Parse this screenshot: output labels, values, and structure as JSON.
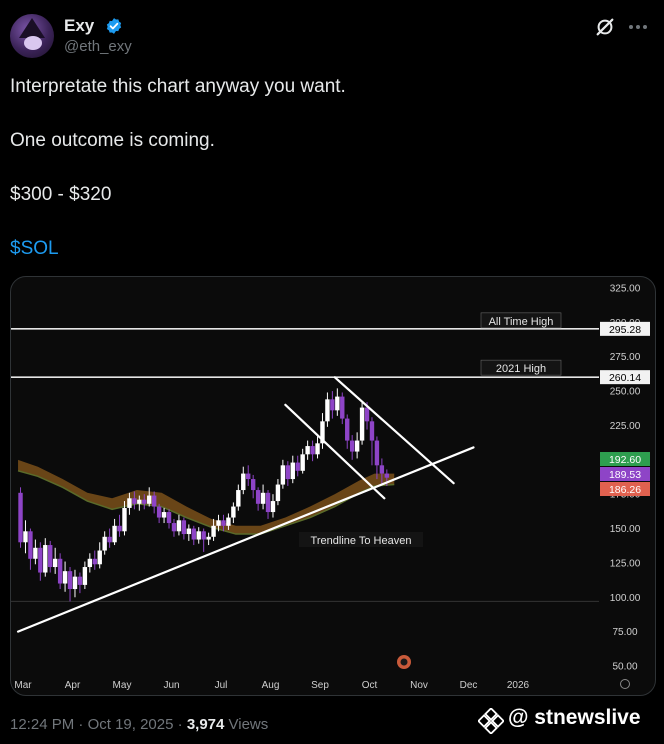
{
  "author": {
    "name": "Exy",
    "handle": "@eth_exy"
  },
  "icons": {
    "verified": "verified-badge-icon",
    "grok": "grok-icon",
    "more": "more-icon",
    "watermark": "binance-square-icon"
  },
  "colors": {
    "background": "#000000",
    "accent": "#1d9bf0",
    "muted": "#71767b",
    "candle_up": "#ffffff",
    "candle_down": "#8e44c7",
    "ema_band": "#8a5a1c"
  },
  "tweet": {
    "line1": "Interpretate this chart anyway you want.",
    "line2": "One outcome is coming.",
    "line3": "$300 - $320",
    "cashtag": "$SOL"
  },
  "meta": {
    "time": "12:24 PM",
    "sep1": " · ",
    "date": "Oct 19, 2025",
    "sep2": " · ",
    "views_count": "3,974",
    "views_label": " Views"
  },
  "watermark": "@ stnewslive",
  "chart_data": {
    "type": "candlestick",
    "symbol": "SOL",
    "y_axis": {
      "min": 50,
      "max": 325,
      "ticks": [
        325.0,
        300.0,
        275.0,
        250.0,
        225.0,
        200.0,
        175.0,
        150.0,
        125.0,
        100.0,
        75.0,
        50.0
      ],
      "tick_labels": [
        "325.00",
        "300.00",
        "275.00",
        "250.00",
        "225.00",
        "200.00",
        "175.00",
        "150.00",
        "125.00",
        "100.00",
        "75.00",
        "50.00"
      ]
    },
    "x_axis": {
      "labels": [
        "Mar",
        "Apr",
        "May",
        "Jun",
        "Jul",
        "Aug",
        "Sep",
        "Oct",
        "Nov",
        "Dec",
        "2026"
      ],
      "positions": [
        0,
        1,
        2,
        3,
        4,
        5,
        6,
        7,
        8,
        9,
        10
      ]
    },
    "horizontal_levels": [
      {
        "label": "All Time High",
        "value": 295.28,
        "value_label": "295.28"
      },
      {
        "label": "2021 High",
        "value": 260.14,
        "value_label": "260.14"
      }
    ],
    "price_tags": [
      {
        "value": 192.6,
        "label": "192.60",
        "color": "#2e9e4f"
      },
      {
        "value": 189.53,
        "label": "189.53",
        "color": "#8e44c7"
      },
      {
        "value": 186.26,
        "label": "186.26",
        "color": "#e0614f"
      }
    ],
    "annotations": [
      {
        "text": "Trendline To Heaven"
      }
    ],
    "trendline": {
      "x": [
        -0.1,
        9.1
      ],
      "y": [
        75,
        209
      ]
    },
    "wedge_upper": {
      "x": [
        6.3,
        8.7
      ],
      "y": [
        260,
        183
      ]
    },
    "wedge_lower": {
      "x": [
        5.3,
        7.3
      ],
      "y": [
        240,
        172
      ]
    },
    "ema": {
      "x": [
        -0.1,
        0.3,
        0.8,
        1.3,
        1.8,
        2.3,
        2.8,
        3.3,
        3.8,
        4.3,
        4.8,
        5.3,
        5.8,
        6.3,
        6.8,
        7.1,
        7.5
      ],
      "upper": [
        200,
        195,
        186,
        176,
        172,
        178,
        176,
        166,
        157,
        152,
        152,
        158,
        166,
        175,
        185,
        190,
        190
      ],
      "lower": [
        192,
        188,
        180,
        170,
        164,
        168,
        166,
        158,
        151,
        146,
        146,
        152,
        158,
        166,
        176,
        181,
        182
      ]
    },
    "candles": [
      {
        "x": -0.05,
        "o": 176,
        "c": 140,
        "h": 180,
        "l": 136
      },
      {
        "x": 0.05,
        "o": 140,
        "c": 148,
        "h": 156,
        "l": 132
      },
      {
        "x": 0.15,
        "o": 148,
        "c": 128,
        "h": 150,
        "l": 120
      },
      {
        "x": 0.25,
        "o": 128,
        "c": 136,
        "h": 142,
        "l": 124
      },
      {
        "x": 0.35,
        "o": 136,
        "c": 118,
        "h": 140,
        "l": 112
      },
      {
        "x": 0.45,
        "o": 118,
        "c": 138,
        "h": 143,
        "l": 115
      },
      {
        "x": 0.55,
        "o": 138,
        "c": 122,
        "h": 141,
        "l": 118
      },
      {
        "x": 0.65,
        "o": 122,
        "c": 128,
        "h": 136,
        "l": 117
      },
      {
        "x": 0.75,
        "o": 128,
        "c": 110,
        "h": 132,
        "l": 106
      },
      {
        "x": 0.85,
        "o": 110,
        "c": 119,
        "h": 126,
        "l": 104
      },
      {
        "x": 0.95,
        "o": 119,
        "c": 106,
        "h": 122,
        "l": 97
      },
      {
        "x": 1.05,
        "o": 106,
        "c": 115,
        "h": 120,
        "l": 100
      },
      {
        "x": 1.15,
        "o": 115,
        "c": 109,
        "h": 118,
        "l": 103
      },
      {
        "x": 1.25,
        "o": 109,
        "c": 122,
        "h": 126,
        "l": 106
      },
      {
        "x": 1.35,
        "o": 122,
        "c": 128,
        "h": 132,
        "l": 118
      },
      {
        "x": 1.45,
        "o": 128,
        "c": 124,
        "h": 134,
        "l": 120
      },
      {
        "x": 1.55,
        "o": 124,
        "c": 134,
        "h": 140,
        "l": 121
      },
      {
        "x": 1.65,
        "o": 134,
        "c": 144,
        "h": 148,
        "l": 131
      },
      {
        "x": 1.75,
        "o": 144,
        "c": 140,
        "h": 150,
        "l": 136
      },
      {
        "x": 1.85,
        "o": 140,
        "c": 152,
        "h": 157,
        "l": 138
      },
      {
        "x": 1.95,
        "o": 152,
        "c": 148,
        "h": 160,
        "l": 144
      },
      {
        "x": 2.05,
        "o": 148,
        "c": 165,
        "h": 170,
        "l": 145
      },
      {
        "x": 2.15,
        "o": 165,
        "c": 172,
        "h": 176,
        "l": 160
      },
      {
        "x": 2.25,
        "o": 172,
        "c": 168,
        "h": 177,
        "l": 164
      },
      {
        "x": 2.35,
        "o": 168,
        "c": 171,
        "h": 174,
        "l": 163
      },
      {
        "x": 2.45,
        "o": 171,
        "c": 168,
        "h": 175,
        "l": 164
      },
      {
        "x": 2.55,
        "o": 168,
        "c": 174,
        "h": 180,
        "l": 166
      },
      {
        "x": 2.65,
        "o": 174,
        "c": 166,
        "h": 177,
        "l": 161
      },
      {
        "x": 2.75,
        "o": 166,
        "c": 158,
        "h": 168,
        "l": 154
      },
      {
        "x": 2.85,
        "o": 158,
        "c": 162,
        "h": 165,
        "l": 154
      },
      {
        "x": 2.95,
        "o": 162,
        "c": 154,
        "h": 164,
        "l": 150
      },
      {
        "x": 3.05,
        "o": 154,
        "c": 148,
        "h": 157,
        "l": 144
      },
      {
        "x": 3.15,
        "o": 148,
        "c": 156,
        "h": 160,
        "l": 145
      },
      {
        "x": 3.25,
        "o": 156,
        "c": 146,
        "h": 158,
        "l": 142
      },
      {
        "x": 3.35,
        "o": 146,
        "c": 150,
        "h": 153,
        "l": 141
      },
      {
        "x": 3.45,
        "o": 150,
        "c": 142,
        "h": 152,
        "l": 138
      },
      {
        "x": 3.55,
        "o": 142,
        "c": 148,
        "h": 151,
        "l": 139
      },
      {
        "x": 3.65,
        "o": 148,
        "c": 142,
        "h": 150,
        "l": 133
      },
      {
        "x": 3.75,
        "o": 142,
        "c": 144,
        "h": 147,
        "l": 138
      },
      {
        "x": 3.85,
        "o": 144,
        "c": 152,
        "h": 157,
        "l": 141
      },
      {
        "x": 3.95,
        "o": 152,
        "c": 156,
        "h": 160,
        "l": 148
      },
      {
        "x": 4.05,
        "o": 156,
        "c": 152,
        "h": 160,
        "l": 148
      },
      {
        "x": 4.15,
        "o": 152,
        "c": 158,
        "h": 161,
        "l": 149
      },
      {
        "x": 4.25,
        "o": 158,
        "c": 166,
        "h": 169,
        "l": 154
      },
      {
        "x": 4.35,
        "o": 166,
        "c": 178,
        "h": 182,
        "l": 163
      },
      {
        "x": 4.45,
        "o": 178,
        "c": 190,
        "h": 195,
        "l": 175
      },
      {
        "x": 4.55,
        "o": 190,
        "c": 186,
        "h": 196,
        "l": 181
      },
      {
        "x": 4.65,
        "o": 186,
        "c": 178,
        "h": 189,
        "l": 172
      },
      {
        "x": 4.75,
        "o": 178,
        "c": 168,
        "h": 180,
        "l": 163
      },
      {
        "x": 4.85,
        "o": 168,
        "c": 176,
        "h": 182,
        "l": 164
      },
      {
        "x": 4.95,
        "o": 176,
        "c": 162,
        "h": 178,
        "l": 157
      },
      {
        "x": 5.05,
        "o": 162,
        "c": 170,
        "h": 175,
        "l": 158
      },
      {
        "x": 5.15,
        "o": 170,
        "c": 182,
        "h": 186,
        "l": 167
      },
      {
        "x": 5.25,
        "o": 182,
        "c": 196,
        "h": 200,
        "l": 179
      },
      {
        "x": 5.35,
        "o": 196,
        "c": 186,
        "h": 199,
        "l": 181
      },
      {
        "x": 5.45,
        "o": 186,
        "c": 198,
        "h": 203,
        "l": 183
      },
      {
        "x": 5.55,
        "o": 198,
        "c": 192,
        "h": 203,
        "l": 188
      },
      {
        "x": 5.65,
        "o": 192,
        "c": 204,
        "h": 208,
        "l": 190
      },
      {
        "x": 5.75,
        "o": 204,
        "c": 210,
        "h": 214,
        "l": 200
      },
      {
        "x": 5.85,
        "o": 210,
        "c": 204,
        "h": 214,
        "l": 199
      },
      {
        "x": 5.95,
        "o": 204,
        "c": 212,
        "h": 217,
        "l": 201
      },
      {
        "x": 6.05,
        "o": 212,
        "c": 228,
        "h": 234,
        "l": 208
      },
      {
        "x": 6.15,
        "o": 228,
        "c": 244,
        "h": 249,
        "l": 224
      },
      {
        "x": 6.25,
        "o": 244,
        "c": 236,
        "h": 250,
        "l": 230
      },
      {
        "x": 6.35,
        "o": 236,
        "c": 246,
        "h": 252,
        "l": 232
      },
      {
        "x": 6.45,
        "o": 246,
        "c": 230,
        "h": 249,
        "l": 226
      },
      {
        "x": 6.55,
        "o": 230,
        "c": 214,
        "h": 233,
        "l": 208
      },
      {
        "x": 6.65,
        "o": 214,
        "c": 206,
        "h": 218,
        "l": 200
      },
      {
        "x": 6.75,
        "o": 206,
        "c": 214,
        "h": 220,
        "l": 201
      },
      {
        "x": 6.85,
        "o": 214,
        "c": 238,
        "h": 242,
        "l": 211
      },
      {
        "x": 6.95,
        "o": 238,
        "c": 228,
        "h": 242,
        "l": 222
      },
      {
        "x": 7.05,
        "o": 228,
        "c": 214,
        "h": 231,
        "l": 196
      },
      {
        "x": 7.15,
        "o": 214,
        "c": 196,
        "h": 217,
        "l": 186
      },
      {
        "x": 7.25,
        "o": 196,
        "c": 190,
        "h": 201,
        "l": 182
      },
      {
        "x": 7.35,
        "o": 190,
        "c": 187,
        "h": 193,
        "l": 181
      }
    ]
  }
}
